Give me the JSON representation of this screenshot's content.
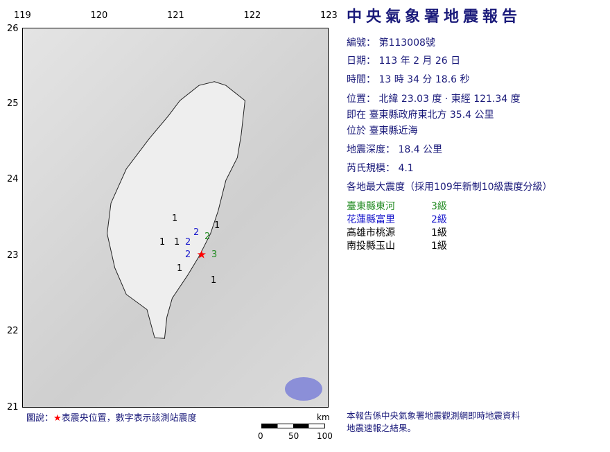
{
  "title": "中央氣象署地震報告",
  "axes": {
    "lon_ticks": [
      "119",
      "120",
      "121",
      "122",
      "123"
    ],
    "lat_ticks": [
      "26",
      "25",
      "24",
      "23",
      "22",
      "21"
    ]
  },
  "report": {
    "number": "編號： 第113008號",
    "date": "日期： 113 年 2 月 26 日",
    "time": "時間： 13 時 34 分 18.6 秒",
    "position": "位置： 北緯 23.03 度 · 東經 121.34 度",
    "relative": "即在 臺東縣政府東北方 35.4 公里",
    "located": "位於 臺東縣近海",
    "depth": "地震深度： 18.4 公里",
    "magnitude": "芮氏規模： 4.1",
    "intensity_header": "各地最大震度（採用109年新制10級震度分級）"
  },
  "epicenter": {
    "lat": 23.03,
    "lon": 121.34,
    "color": "#ff0000"
  },
  "intensities": [
    {
      "place": "臺東縣東河",
      "level": "3級",
      "color": "#228b22"
    },
    {
      "place": "花蓮縣富里",
      "level": "2級",
      "color": "#1a1acc"
    },
    {
      "place": "高雄市桃源",
      "level": "1級",
      "color": "#000000"
    },
    {
      "place": "南投縣玉山",
      "level": "1級",
      "color": "#000000"
    }
  ],
  "stations": [
    "1",
    "1",
    "1",
    "2",
    "2",
    "2",
    "2",
    "3",
    "1",
    "1",
    "1"
  ],
  "legend": {
    "prefix": "圖說：",
    "star": "★",
    "text": "表震央位置，數字表示該測站震度"
  },
  "scale": {
    "unit": "km",
    "labels": [
      "0",
      "50",
      "100"
    ]
  },
  "footer": [
    "本報告係中央氣象署地震觀測網即時地震資料",
    "地震速報之結果。"
  ]
}
